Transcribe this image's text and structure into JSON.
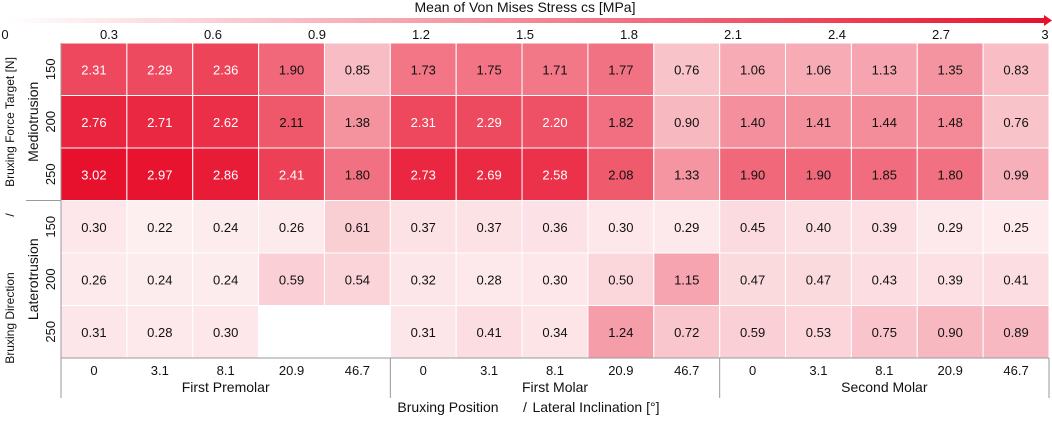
{
  "colors": {
    "low": "#ffffff",
    "high": "#e8112d",
    "grid": "#ffffff",
    "axis": "#9a9a9a",
    "text_dark": "#111111",
    "text_light": "#ffffff"
  },
  "chart_data": {
    "type": "heatmap",
    "title": "Mean of Von Mises Stress cs [MPa]",
    "colorbar": {
      "min": 0,
      "max": 3,
      "ticks": [
        "0",
        "0.3",
        "0.6",
        "0.9",
        "1.2",
        "1.5",
        "1.8",
        "2.1",
        "2.4",
        "2.7",
        "3"
      ],
      "tick_values": [
        0,
        0.3,
        0.6,
        0.9,
        1.2,
        1.5,
        1.8,
        2.1,
        2.4,
        2.7,
        3
      ],
      "position": "top"
    },
    "y_axis": {
      "label_outer": "Bruxing Direction",
      "label_inner": "Bruxing Force Target [N]",
      "separator": "/",
      "groups": [
        "Mediotrusion",
        "Laterotrusion"
      ],
      "rows": [
        "150",
        "200",
        "250",
        "150",
        "200",
        "250"
      ]
    },
    "x_axis": {
      "label_outer": "Bruxing Position",
      "label_inner": "Lateral Inclination [°]",
      "separator": "/",
      "groups": [
        "First Premolar",
        "First Molar",
        "Second Molar"
      ],
      "columns": [
        "0",
        "3.1",
        "8.1",
        "20.9",
        "46.7",
        "0",
        "3.1",
        "8.1",
        "20.9",
        "46.7",
        "0",
        "3.1",
        "8.1",
        "20.9",
        "46.7"
      ]
    },
    "values": [
      [
        2.31,
        2.29,
        2.36,
        1.9,
        0.85,
        1.73,
        1.75,
        1.71,
        1.77,
        0.76,
        1.06,
        1.06,
        1.13,
        1.35,
        0.83
      ],
      [
        2.76,
        2.71,
        2.62,
        2.11,
        1.38,
        2.31,
        2.29,
        2.2,
        1.82,
        0.9,
        1.4,
        1.41,
        1.44,
        1.48,
        0.76
      ],
      [
        3.02,
        2.97,
        2.86,
        2.41,
        1.8,
        2.73,
        2.69,
        2.58,
        2.08,
        1.33,
        1.9,
        1.9,
        1.85,
        1.8,
        0.99
      ],
      [
        0.3,
        0.22,
        0.24,
        0.26,
        0.61,
        0.37,
        0.37,
        0.36,
        0.3,
        0.29,
        0.45,
        0.4,
        0.39,
        0.29,
        0.25
      ],
      [
        0.26,
        0.24,
        0.24,
        0.59,
        0.54,
        0.32,
        0.28,
        0.3,
        0.5,
        1.15,
        0.47,
        0.47,
        0.43,
        0.39,
        0.41
      ],
      [
        0.31,
        0.28,
        0.3,
        null,
        null,
        0.31,
        0.41,
        0.34,
        1.24,
        0.72,
        0.59,
        0.53,
        0.75,
        0.9,
        0.89
      ]
    ],
    "value_labels": [
      [
        "2.31",
        "2.29",
        "2.36",
        "1.90",
        "0.85",
        "1.73",
        "1.75",
        "1.71",
        "1.77",
        "0.76",
        "1.06",
        "1.06",
        "1.13",
        "1.35",
        "0.83"
      ],
      [
        "2.76",
        "2.71",
        "2.62",
        "2.11",
        "1.38",
        "2.31",
        "2.29",
        "2.20",
        "1.82",
        "0.90",
        "1.40",
        "1.41",
        "1.44",
        "1.48",
        "0.76"
      ],
      [
        "3.02",
        "2.97",
        "2.86",
        "2.41",
        "1.80",
        "2.73",
        "2.69",
        "2.58",
        "2.08",
        "1.33",
        "1.90",
        "1.90",
        "1.85",
        "1.80",
        "0.99"
      ],
      [
        "0.30",
        "0.22",
        "0.24",
        "0.26",
        "0.61",
        "0.37",
        "0.37",
        "0.36",
        "0.30",
        "0.29",
        "0.45",
        "0.40",
        "0.39",
        "0.29",
        "0.25"
      ],
      [
        "0.26",
        "0.24",
        "0.24",
        "0.59",
        "0.54",
        "0.32",
        "0.28",
        "0.30",
        "0.50",
        "1.15",
        "0.47",
        "0.47",
        "0.43",
        "0.39",
        "0.41"
      ],
      [
        "0.31",
        "0.28",
        "0.30",
        "",
        "",
        "0.31",
        "0.41",
        "0.34",
        "1.24",
        "0.72",
        "0.59",
        "0.53",
        "0.75",
        "0.90",
        "0.89"
      ]
    ]
  }
}
